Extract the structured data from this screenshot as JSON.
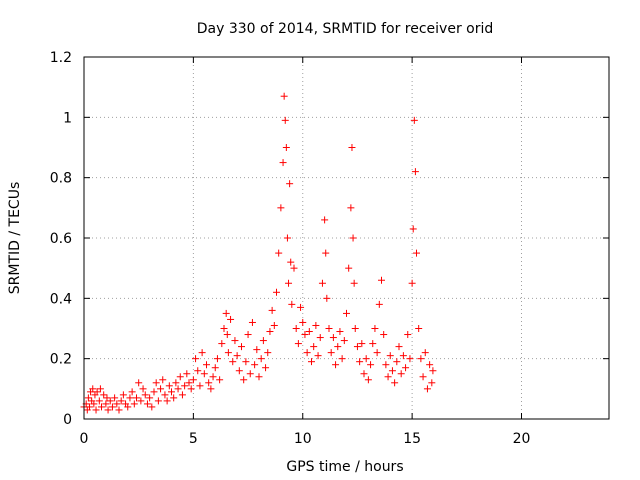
{
  "chart_data": {
    "type": "scatter",
    "title": "Day 330 of 2014, SRMTID for receiver orid",
    "xlabel": "GPS time / hours",
    "ylabel": "SRMTID / TECUs",
    "xlim": [
      0,
      24
    ],
    "ylim": [
      0,
      1.2
    ],
    "xticks": [
      0,
      5,
      10,
      15,
      20
    ],
    "yticks": [
      0,
      0.2,
      0.4,
      0.6,
      0.8,
      1,
      1.2
    ],
    "xtick_labels": [
      "0",
      "5",
      "10",
      "15",
      "20"
    ],
    "ytick_labels": [
      "0",
      "0.2",
      "0.4",
      "0.6",
      "0.8",
      "1",
      "1.2"
    ],
    "grid": true,
    "marker": "plus",
    "color": "#ff0000",
    "series": [
      {
        "name": "SRMTID",
        "points": [
          [
            0.0,
            0.04
          ],
          [
            0.1,
            0.05
          ],
          [
            0.15,
            0.03
          ],
          [
            0.2,
            0.07
          ],
          [
            0.25,
            0.04
          ],
          [
            0.3,
            0.09
          ],
          [
            0.35,
            0.06
          ],
          [
            0.4,
            0.1
          ],
          [
            0.45,
            0.05
          ],
          [
            0.5,
            0.08
          ],
          [
            0.55,
            0.03
          ],
          [
            0.6,
            0.09
          ],
          [
            0.7,
            0.06
          ],
          [
            0.75,
            0.1
          ],
          [
            0.8,
            0.04
          ],
          [
            0.9,
            0.08
          ],
          [
            1.0,
            0.05
          ],
          [
            1.05,
            0.07
          ],
          [
            1.1,
            0.03
          ],
          [
            1.2,
            0.06
          ],
          [
            1.3,
            0.04
          ],
          [
            1.4,
            0.07
          ],
          [
            1.5,
            0.05
          ],
          [
            1.6,
            0.03
          ],
          [
            1.7,
            0.06
          ],
          [
            1.8,
            0.08
          ],
          [
            1.9,
            0.05
          ],
          [
            2.0,
            0.04
          ],
          [
            2.1,
            0.07
          ],
          [
            2.2,
            0.09
          ],
          [
            2.3,
            0.05
          ],
          [
            2.4,
            0.07
          ],
          [
            2.5,
            0.12
          ],
          [
            2.6,
            0.06
          ],
          [
            2.7,
            0.1
          ],
          [
            2.8,
            0.08
          ],
          [
            2.9,
            0.05
          ],
          [
            3.0,
            0.07
          ],
          [
            3.1,
            0.04
          ],
          [
            3.2,
            0.09
          ],
          [
            3.3,
            0.12
          ],
          [
            3.4,
            0.06
          ],
          [
            3.5,
            0.1
          ],
          [
            3.6,
            0.13
          ],
          [
            3.7,
            0.08
          ],
          [
            3.8,
            0.06
          ],
          [
            3.9,
            0.11
          ],
          [
            4.0,
            0.09
          ],
          [
            4.1,
            0.07
          ],
          [
            4.2,
            0.12
          ],
          [
            4.3,
            0.1
          ],
          [
            4.4,
            0.14
          ],
          [
            4.5,
            0.08
          ],
          [
            4.6,
            0.11
          ],
          [
            4.7,
            0.15
          ],
          [
            4.8,
            0.12
          ],
          [
            4.9,
            0.1
          ],
          [
            5.0,
            0.13
          ],
          [
            5.1,
            0.2
          ],
          [
            5.2,
            0.16
          ],
          [
            5.3,
            0.11
          ],
          [
            5.4,
            0.22
          ],
          [
            5.5,
            0.15
          ],
          [
            5.6,
            0.18
          ],
          [
            5.7,
            0.12
          ],
          [
            5.8,
            0.1
          ],
          [
            5.9,
            0.14
          ],
          [
            6.0,
            0.17
          ],
          [
            6.1,
            0.2
          ],
          [
            6.2,
            0.13
          ],
          [
            6.3,
            0.25
          ],
          [
            6.4,
            0.3
          ],
          [
            6.5,
            0.35
          ],
          [
            6.55,
            0.28
          ],
          [
            6.6,
            0.22
          ],
          [
            6.7,
            0.33
          ],
          [
            6.8,
            0.19
          ],
          [
            6.9,
            0.26
          ],
          [
            7.0,
            0.21
          ],
          [
            7.1,
            0.16
          ],
          [
            7.2,
            0.24
          ],
          [
            7.3,
            0.13
          ],
          [
            7.4,
            0.19
          ],
          [
            7.5,
            0.28
          ],
          [
            7.6,
            0.15
          ],
          [
            7.7,
            0.32
          ],
          [
            7.8,
            0.18
          ],
          [
            7.9,
            0.23
          ],
          [
            8.0,
            0.14
          ],
          [
            8.1,
            0.2
          ],
          [
            8.2,
            0.26
          ],
          [
            8.3,
            0.17
          ],
          [
            8.4,
            0.22
          ],
          [
            8.5,
            0.29
          ],
          [
            8.6,
            0.36
          ],
          [
            8.7,
            0.31
          ],
          [
            8.8,
            0.42
          ],
          [
            8.9,
            0.55
          ],
          [
            9.0,
            0.7
          ],
          [
            9.1,
            0.85
          ],
          [
            9.15,
            1.07
          ],
          [
            9.2,
            0.99
          ],
          [
            9.25,
            0.9
          ],
          [
            9.3,
            0.6
          ],
          [
            9.35,
            0.45
          ],
          [
            9.4,
            0.78
          ],
          [
            9.45,
            0.52
          ],
          [
            9.5,
            0.38
          ],
          [
            9.6,
            0.5
          ],
          [
            9.7,
            0.3
          ],
          [
            9.8,
            0.25
          ],
          [
            9.9,
            0.37
          ],
          [
            10.0,
            0.32
          ],
          [
            10.1,
            0.28
          ],
          [
            10.2,
            0.22
          ],
          [
            10.3,
            0.29
          ],
          [
            10.4,
            0.19
          ],
          [
            10.5,
            0.24
          ],
          [
            10.6,
            0.31
          ],
          [
            10.7,
            0.21
          ],
          [
            10.8,
            0.27
          ],
          [
            10.9,
            0.45
          ],
          [
            11.0,
            0.66
          ],
          [
            11.05,
            0.55
          ],
          [
            11.1,
            0.4
          ],
          [
            11.2,
            0.3
          ],
          [
            11.3,
            0.22
          ],
          [
            11.4,
            0.27
          ],
          [
            11.5,
            0.18
          ],
          [
            11.6,
            0.24
          ],
          [
            11.7,
            0.29
          ],
          [
            11.8,
            0.2
          ],
          [
            11.9,
            0.26
          ],
          [
            12.0,
            0.35
          ],
          [
            12.1,
            0.5
          ],
          [
            12.2,
            0.7
          ],
          [
            12.25,
            0.9
          ],
          [
            12.3,
            0.6
          ],
          [
            12.35,
            0.45
          ],
          [
            12.4,
            0.3
          ],
          [
            12.5,
            0.24
          ],
          [
            12.6,
            0.19
          ],
          [
            12.7,
            0.25
          ],
          [
            12.8,
            0.15
          ],
          [
            12.9,
            0.2
          ],
          [
            13.0,
            0.13
          ],
          [
            13.1,
            0.18
          ],
          [
            13.2,
            0.25
          ],
          [
            13.3,
            0.3
          ],
          [
            13.4,
            0.22
          ],
          [
            13.5,
            0.38
          ],
          [
            13.6,
            0.46
          ],
          [
            13.7,
            0.28
          ],
          [
            13.8,
            0.18
          ],
          [
            13.9,
            0.14
          ],
          [
            14.0,
            0.21
          ],
          [
            14.1,
            0.16
          ],
          [
            14.2,
            0.12
          ],
          [
            14.3,
            0.19
          ],
          [
            14.4,
            0.24
          ],
          [
            14.5,
            0.15
          ],
          [
            14.6,
            0.21
          ],
          [
            14.7,
            0.17
          ],
          [
            14.8,
            0.28
          ],
          [
            14.9,
            0.2
          ],
          [
            15.0,
            0.45
          ],
          [
            15.05,
            0.63
          ],
          [
            15.1,
            0.99
          ],
          [
            15.15,
            0.82
          ],
          [
            15.2,
            0.55
          ],
          [
            15.3,
            0.3
          ],
          [
            15.4,
            0.2
          ],
          [
            15.5,
            0.14
          ],
          [
            15.6,
            0.22
          ],
          [
            15.7,
            0.1
          ],
          [
            15.8,
            0.18
          ],
          [
            15.9,
            0.12
          ],
          [
            15.95,
            0.16
          ]
        ]
      }
    ]
  }
}
